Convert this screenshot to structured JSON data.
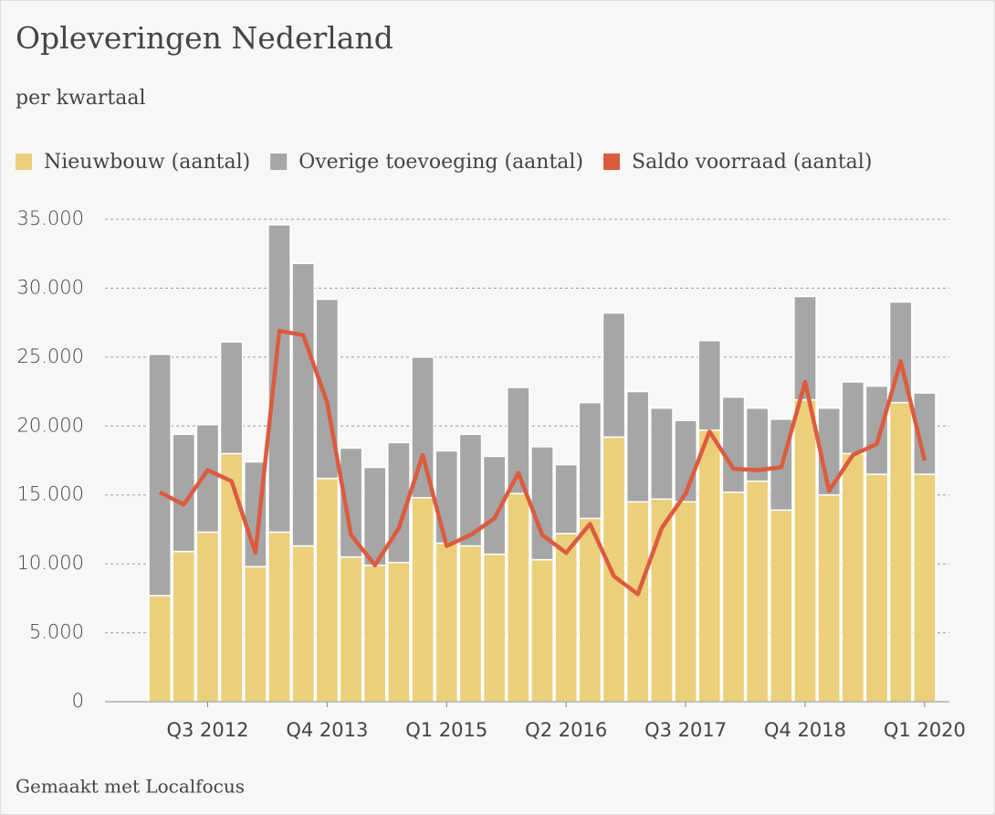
{
  "chart_data": {
    "type": "bar_line",
    "title": "Opleveringen Nederland",
    "subtitle": "per kwartaal",
    "source": "Gemaakt met Localfocus",
    "categories": [
      null,
      null,
      "Q3 2012",
      null,
      null,
      null,
      null,
      "Q4 2013",
      null,
      null,
      null,
      null,
      "Q1 2015",
      null,
      null,
      null,
      null,
      "Q2 2016",
      null,
      null,
      null,
      null,
      "Q3 2017",
      null,
      null,
      null,
      null,
      "Q4 2018",
      null,
      null,
      null,
      null,
      "Q1 2020"
    ],
    "series": [
      {
        "name": "Nieuwbouw (aantal)",
        "color": "#ebcf7a",
        "kind": "bar",
        "values": [
          7700,
          10900,
          12300,
          18000,
          9800,
          12300,
          11300,
          16200,
          10500,
          9900,
          10100,
          14800,
          11500,
          11300,
          10700,
          15100,
          10300,
          12200,
          13300,
          19200,
          14500,
          14700,
          14500,
          19700,
          15200,
          16000,
          13900,
          21900,
          15000,
          18000,
          16500,
          21700,
          16500
        ]
      },
      {
        "name": "Overige toevoeging (aantal)",
        "color": "#a6a6a6",
        "kind": "bar",
        "values": [
          17500,
          8500,
          7800,
          8100,
          7600,
          22300,
          20500,
          13000,
          7900,
          7100,
          8700,
          10200,
          6700,
          8100,
          7100,
          7700,
          8200,
          5000,
          8400,
          9000,
          8000,
          6600,
          5900,
          6500,
          6900,
          5300,
          6600,
          7500,
          6300,
          5200,
          6400,
          7300,
          5900
        ]
      },
      {
        "name": "Saldo voorraad (aantal)",
        "color": "#dc5b3f",
        "kind": "line",
        "values": [
          15200,
          14300,
          16800,
          16000,
          10800,
          26900,
          26600,
          21700,
          12100,
          9900,
          12600,
          17900,
          11300,
          12100,
          13300,
          16600,
          12100,
          10800,
          12900,
          9100,
          7800,
          12600,
          15100,
          19600,
          16900,
          16800,
          17000,
          23200,
          15300,
          17900,
          18700,
          24700,
          17500
        ]
      }
    ],
    "stacked": true,
    "ylim": [
      0,
      35000
    ],
    "yticks": [
      0,
      {
        "value": 5000,
        "label": "5.000"
      },
      {
        "value": 10000,
        "label": "10.000"
      },
      {
        "value": 15000,
        "label": "15.000"
      },
      {
        "value": 20000,
        "label": "20.000"
      },
      {
        "value": 25000,
        "label": "25.000"
      },
      {
        "value": 30000,
        "label": "30.000"
      },
      {
        "value": 35000,
        "label": "35.000"
      }
    ],
    "grid": true,
    "legend": "top"
  }
}
